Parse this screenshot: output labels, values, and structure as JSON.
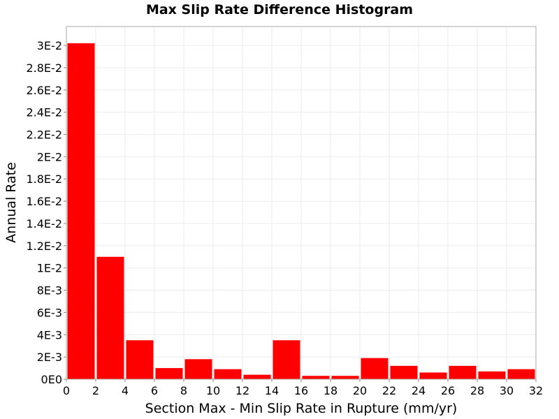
{
  "chart_data": {
    "type": "bar",
    "title": "Max Slip Rate Difference Histogram",
    "xlabel": "Section Max - Min Slip Rate in Rupture (mm/yr)",
    "ylabel": "Annual Rate",
    "xlim": [
      0,
      32
    ],
    "ylim": [
      0,
      0.0317
    ],
    "bin_width": 2,
    "x_ticks": [
      0,
      2,
      4,
      6,
      8,
      10,
      12,
      14,
      16,
      18,
      20,
      22,
      24,
      26,
      28,
      30,
      32
    ],
    "x_tick_labels": [
      "0",
      "2",
      "4",
      "6",
      "8",
      "10",
      "12",
      "14",
      "16",
      "18",
      "20",
      "22",
      "24",
      "26",
      "28",
      "30",
      "32"
    ],
    "y_ticks": [
      0,
      0.002,
      0.004,
      0.006,
      0.008,
      0.01,
      0.012,
      0.014,
      0.016,
      0.018,
      0.02,
      0.022,
      0.024,
      0.026,
      0.028,
      0.03
    ],
    "y_tick_labels": [
      "0E0",
      "2E-3",
      "4E-3",
      "6E-3",
      "8E-3",
      "1E-2",
      "1.2E-2",
      "1.4E-2",
      "1.6E-2",
      "1.8E-2",
      "2E-2",
      "2.2E-2",
      "2.4E-2",
      "2.6E-2",
      "2.8E-2",
      "3E-2"
    ],
    "bins": [
      0,
      2,
      4,
      6,
      8,
      10,
      12,
      14,
      16,
      18,
      20,
      22,
      24,
      26,
      28,
      30
    ],
    "values": [
      0.0302,
      0.011,
      0.0035,
      0.001,
      0.0018,
      0.0009,
      0.0004,
      0.0035,
      0.0003,
      0.0003,
      0.0019,
      0.0012,
      0.0006,
      0.0012,
      0.0007,
      0.0009
    ],
    "bar_color": "#ff0000",
    "grid": true,
    "grid_color": "#ebebeb",
    "legend": "none"
  }
}
